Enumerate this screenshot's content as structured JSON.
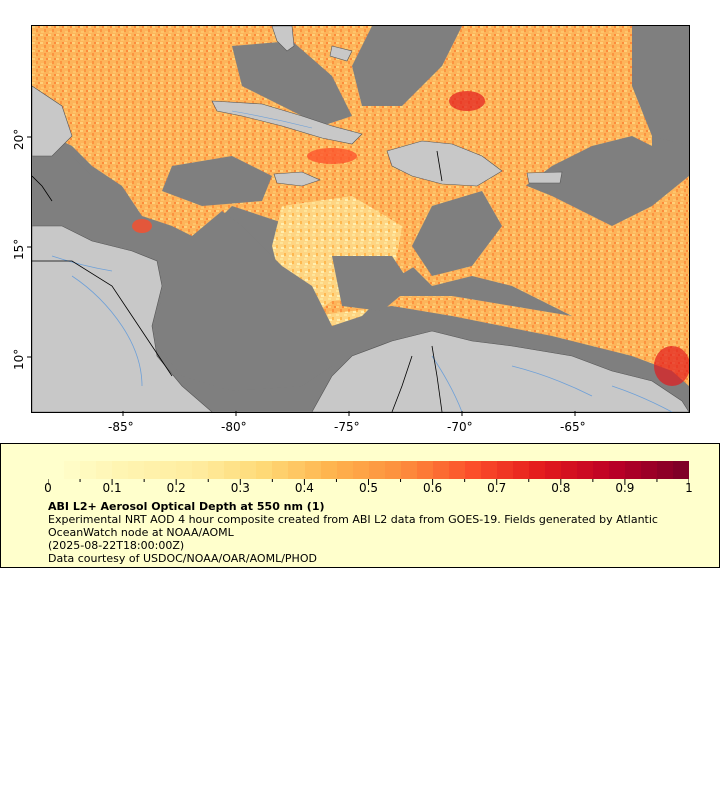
{
  "map": {
    "x_tick_labels": [
      "-85°",
      "-80°",
      "-75°",
      "-70°",
      "-65°"
    ],
    "y_tick_labels": [
      "20°",
      "15°",
      "10°"
    ],
    "colors": {
      "ocean_nodata": "#7f7f7f",
      "land": "#c8c8c8",
      "rivers": "#6ea0d8",
      "borders": "#000000",
      "coastline": "#555555"
    }
  },
  "legend": {
    "colorbar_labels": [
      "0",
      "0.1",
      "0.2",
      "0.3",
      "0.4",
      "0.5",
      "0.6",
      "0.7",
      "0.8",
      "0.9",
      "1"
    ],
    "colorbar_colors": [
      "#ffffcc",
      "#fff4b0",
      "#ffeda0",
      "#fed976",
      "#feb24c",
      "#fd8d3c",
      "#fc4e2a",
      "#e31a1c",
      "#bd0026",
      "#800026"
    ],
    "title": "ABI L2+ Aerosol Optical Depth at 550 nm (1)",
    "description": "Experimental NRT AOD 4 hour composite created from ABI L2 data from GOES-19. Fields generated by Atlantic OceanWatch node at NOAA/AOML",
    "timestamp": "(2025-08-22T18:00:00Z)",
    "credit": "Data courtesy of USDOC/NOAA/OAR/AOML/PHOD"
  }
}
